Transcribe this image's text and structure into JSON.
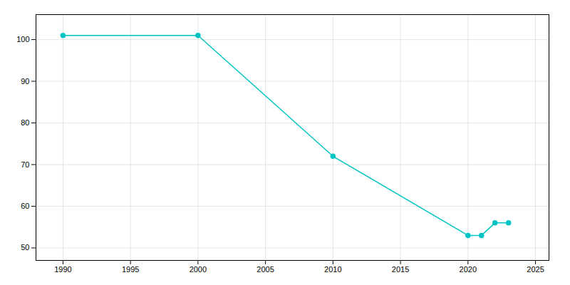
{
  "chart_data": {
    "type": "line",
    "x": [
      1990,
      2000,
      2010,
      2020,
      2021,
      2022,
      2023
    ],
    "values": [
      101,
      101,
      72,
      53,
      53,
      56,
      56
    ],
    "color": "#00C4C4",
    "marker": "circle",
    "xlim": [
      1988,
      2026
    ],
    "ylim": [
      47,
      106
    ],
    "xticks": [
      1990,
      1995,
      2000,
      2005,
      2010,
      2015,
      2020,
      2025
    ],
    "yticks": [
      50,
      60,
      70,
      80,
      90,
      100
    ],
    "grid": true
  }
}
